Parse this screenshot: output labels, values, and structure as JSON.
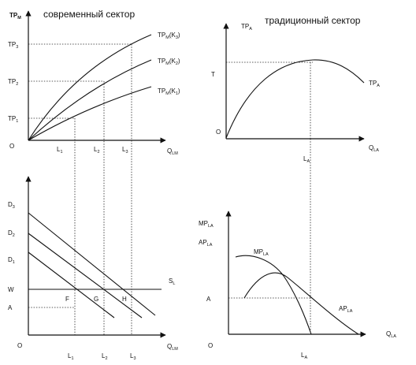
{
  "panels": {
    "modern_tp": {
      "title": "современный сектор",
      "y_axis": {
        "main": "TP",
        "sub": "M"
      },
      "x_axis": {
        "main": "Q",
        "sub": "LM"
      },
      "origin": "O",
      "y_ticks": [
        {
          "main": "TP",
          "sub": "3"
        },
        {
          "main": "TP",
          "sub": "2"
        },
        {
          "main": "TP",
          "sub": "1"
        }
      ],
      "x_ticks": [
        {
          "main": "L",
          "sub": "1"
        },
        {
          "main": "L",
          "sub": "2"
        },
        {
          "main": "L",
          "sub": "3"
        }
      ],
      "curves": [
        {
          "main": "TP",
          "sub": "M",
          "arg": "(K",
          "argsub": "3",
          "close": ")"
        },
        {
          "main": "TP",
          "sub": "M",
          "arg": "(K",
          "argsub": "2",
          "close": ")"
        },
        {
          "main": "TP",
          "sub": "M",
          "arg": "(K",
          "argsub": "1",
          "close": ")"
        }
      ]
    },
    "traditional_tp": {
      "title": "традиционный сектор",
      "y_axis": {
        "main": "TP",
        "sub": "A"
      },
      "x_axis": {
        "main": "Q",
        "sub": "LA"
      },
      "origin": "O",
      "y_tick": "T",
      "x_tick": {
        "main": "L",
        "sub": "A"
      },
      "curve": {
        "main": "TP",
        "sub": "A"
      }
    },
    "modern_labor": {
      "x_axis": {
        "main": "Q",
        "sub": "LM"
      },
      "origin": "O",
      "y_ticks": [
        {
          "main": "D",
          "sub": "3"
        },
        {
          "main": "D",
          "sub": "2"
        },
        {
          "main": "D",
          "sub": "1"
        },
        {
          "main": "W",
          "sub": ""
        },
        {
          "main": "A",
          "sub": ""
        }
      ],
      "x_ticks": [
        {
          "main": "L",
          "sub": "1"
        },
        {
          "main": "L",
          "sub": "2"
        },
        {
          "main": "L",
          "sub": "3"
        }
      ],
      "points": [
        "F",
        "G",
        "H"
      ],
      "supply": {
        "main": "S",
        "sub": "L"
      }
    },
    "traditional_labor": {
      "y_axis": [
        {
          "main": "MP",
          "sub": "LA"
        },
        {
          "main": "AP",
          "sub": "LA"
        }
      ],
      "x_axis": {
        "main": "Q",
        "sub": "LA"
      },
      "origin": "O",
      "y_tick": "A",
      "x_tick": {
        "main": "L",
        "sub": "A"
      },
      "mp_curve": {
        "main": "MP",
        "sub": "LA"
      },
      "ap_curve": {
        "main": "AP",
        "sub": "LA"
      }
    }
  }
}
